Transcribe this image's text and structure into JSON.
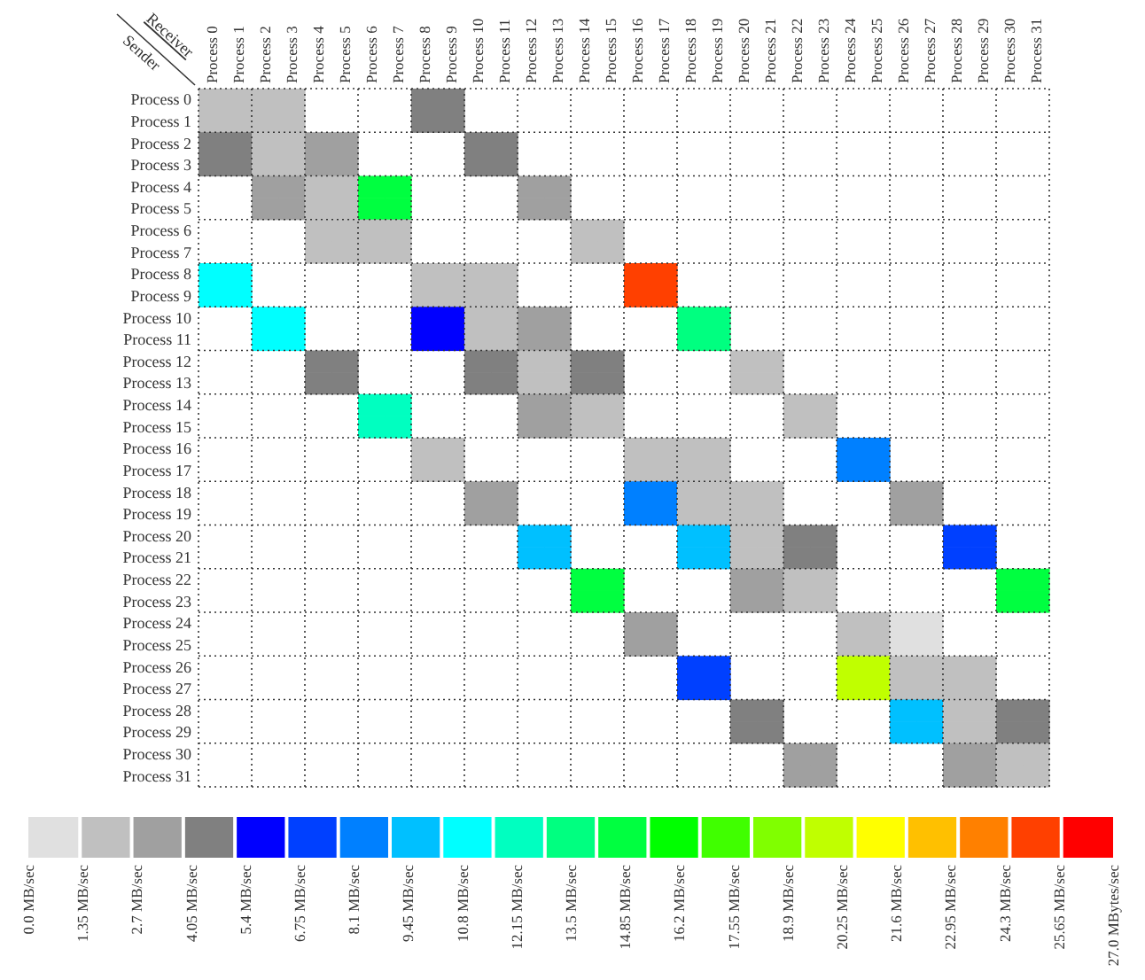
{
  "chart_data": {
    "type": "heatmap",
    "xlabel": "Receiver",
    "ylabel": "Sender",
    "categories": [
      "Process 0",
      "Process 1",
      "Process 2",
      "Process 3",
      "Process 4",
      "Process 5",
      "Process 6",
      "Process 7",
      "Process 8",
      "Process 9",
      "Process 10",
      "Process 11",
      "Process 12",
      "Process 13",
      "Process 14",
      "Process 15",
      "Process 16",
      "Process 17",
      "Process 18",
      "Process 19",
      "Process 20",
      "Process 21",
      "Process 22",
      "Process 23",
      "Process 24",
      "Process 25",
      "Process 26",
      "Process 27",
      "Process 28",
      "Process 29",
      "Process 30",
      "Process 31"
    ],
    "y_categories": [
      "Process 0",
      "Process 1",
      "Process 2",
      "Process 3",
      "Process 4",
      "Process 5",
      "Process 6",
      "Process 7",
      "Process 8",
      "Process 9",
      "Process 10",
      "Process 11",
      "Process 12",
      "Process 13",
      "Process 14",
      "Process 15",
      "Process 16",
      "Process 17",
      "Process 18",
      "Process 19",
      "Process 20",
      "Process 21",
      "Process 22",
      "Process 23",
      "Process 24",
      "Process 25",
      "Process 26",
      "Process 27",
      "Process 28",
      "Process 29",
      "Process 30",
      "Process 31"
    ],
    "cells": [
      [
        1.35,
        1.35,
        1.35,
        1.35,
        null,
        null,
        null,
        null,
        4.05,
        4.05,
        null,
        null,
        null,
        null,
        null,
        null,
        null,
        null,
        null,
        null,
        null,
        null,
        null,
        null,
        null,
        null,
        null,
        null,
        null,
        null,
        null,
        null
      ],
      [
        1.35,
        1.35,
        1.35,
        1.35,
        null,
        null,
        null,
        null,
        4.05,
        4.05,
        null,
        null,
        null,
        null,
        null,
        null,
        null,
        null,
        null,
        null,
        null,
        null,
        null,
        null,
        null,
        null,
        null,
        null,
        null,
        null,
        null,
        null
      ],
      [
        4.05,
        4.05,
        1.35,
        1.35,
        2.7,
        2.7,
        null,
        null,
        null,
        null,
        4.05,
        4.05,
        null,
        null,
        null,
        null,
        null,
        null,
        null,
        null,
        null,
        null,
        null,
        null,
        null,
        null,
        null,
        null,
        null,
        null,
        null,
        null
      ],
      [
        4.05,
        4.05,
        1.35,
        1.35,
        2.7,
        2.7,
        null,
        null,
        null,
        null,
        4.05,
        4.05,
        null,
        null,
        null,
        null,
        null,
        null,
        null,
        null,
        null,
        null,
        null,
        null,
        null,
        null,
        null,
        null,
        null,
        null,
        null,
        null
      ],
      [
        null,
        null,
        2.7,
        2.7,
        1.35,
        1.35,
        14.85,
        14.85,
        null,
        null,
        null,
        null,
        2.7,
        2.7,
        null,
        null,
        null,
        null,
        null,
        null,
        null,
        null,
        null,
        null,
        null,
        null,
        null,
        null,
        null,
        null,
        null,
        null
      ],
      [
        null,
        null,
        2.7,
        2.7,
        1.35,
        1.35,
        14.85,
        14.85,
        null,
        null,
        null,
        null,
        2.7,
        2.7,
        null,
        null,
        null,
        null,
        null,
        null,
        null,
        null,
        null,
        null,
        null,
        null,
        null,
        null,
        null,
        null,
        null,
        null
      ],
      [
        null,
        null,
        null,
        null,
        1.35,
        1.35,
        1.35,
        1.35,
        null,
        null,
        null,
        null,
        null,
        null,
        1.35,
        1.35,
        null,
        null,
        null,
        null,
        null,
        null,
        null,
        null,
        null,
        null,
        null,
        null,
        null,
        null,
        null,
        null
      ],
      [
        null,
        null,
        null,
        null,
        1.35,
        1.35,
        1.35,
        1.35,
        null,
        null,
        null,
        null,
        null,
        null,
        1.35,
        1.35,
        null,
        null,
        null,
        null,
        null,
        null,
        null,
        null,
        null,
        null,
        null,
        null,
        null,
        null,
        null,
        null
      ],
      [
        10.8,
        10.8,
        null,
        null,
        null,
        null,
        null,
        null,
        1.35,
        1.35,
        1.35,
        1.35,
        null,
        null,
        null,
        null,
        25.65,
        25.65,
        null,
        null,
        null,
        null,
        null,
        null,
        null,
        null,
        null,
        null,
        null,
        null,
        null,
        null
      ],
      [
        10.8,
        10.8,
        null,
        null,
        null,
        null,
        null,
        null,
        1.35,
        1.35,
        1.35,
        1.35,
        null,
        null,
        null,
        null,
        25.65,
        25.65,
        null,
        null,
        null,
        null,
        null,
        null,
        null,
        null,
        null,
        null,
        null,
        null,
        null,
        null
      ],
      [
        null,
        null,
        10.8,
        10.8,
        null,
        null,
        null,
        null,
        5.4,
        5.4,
        1.35,
        1.35,
        2.7,
        2.7,
        null,
        null,
        null,
        null,
        13.5,
        13.5,
        null,
        null,
        null,
        null,
        null,
        null,
        null,
        null,
        null,
        null,
        null,
        null
      ],
      [
        null,
        null,
        10.8,
        10.8,
        null,
        null,
        null,
        null,
        5.4,
        5.4,
        1.35,
        1.35,
        2.7,
        2.7,
        null,
        null,
        null,
        null,
        13.5,
        13.5,
        null,
        null,
        null,
        null,
        null,
        null,
        null,
        null,
        null,
        null,
        null,
        null
      ],
      [
        null,
        null,
        null,
        null,
        4.05,
        4.05,
        null,
        null,
        null,
        null,
        4.05,
        4.05,
        1.35,
        1.35,
        4.05,
        4.05,
        null,
        null,
        null,
        null,
        1.35,
        1.35,
        null,
        null,
        null,
        null,
        null,
        null,
        null,
        null,
        null,
        null
      ],
      [
        null,
        null,
        null,
        null,
        4.05,
        4.05,
        null,
        null,
        null,
        null,
        4.05,
        4.05,
        1.35,
        1.35,
        4.05,
        4.05,
        null,
        null,
        null,
        null,
        1.35,
        1.35,
        null,
        null,
        null,
        null,
        null,
        null,
        null,
        null,
        null,
        null
      ],
      [
        null,
        null,
        null,
        null,
        null,
        null,
        12.15,
        12.15,
        null,
        null,
        null,
        null,
        2.7,
        2.7,
        1.35,
        1.35,
        null,
        null,
        null,
        null,
        null,
        null,
        1.35,
        1.35,
        null,
        null,
        null,
        null,
        null,
        null,
        null,
        null
      ],
      [
        null,
        null,
        null,
        null,
        null,
        null,
        12.15,
        12.15,
        null,
        null,
        null,
        null,
        2.7,
        2.7,
        1.35,
        1.35,
        null,
        null,
        null,
        null,
        null,
        null,
        1.35,
        1.35,
        null,
        null,
        null,
        null,
        null,
        null,
        null,
        null
      ],
      [
        null,
        null,
        null,
        null,
        null,
        null,
        null,
        null,
        1.35,
        1.35,
        null,
        null,
        null,
        null,
        null,
        null,
        1.35,
        1.35,
        1.35,
        1.35,
        null,
        null,
        null,
        null,
        8.1,
        8.1,
        null,
        null,
        null,
        null,
        null,
        null
      ],
      [
        null,
        null,
        null,
        null,
        null,
        null,
        null,
        null,
        1.35,
        1.35,
        null,
        null,
        null,
        null,
        null,
        null,
        1.35,
        1.35,
        1.35,
        1.35,
        null,
        null,
        null,
        null,
        8.1,
        8.1,
        null,
        null,
        null,
        null,
        null,
        null
      ],
      [
        null,
        null,
        null,
        null,
        null,
        null,
        null,
        null,
        null,
        null,
        2.7,
        2.7,
        null,
        null,
        null,
        null,
        8.1,
        8.1,
        1.35,
        1.35,
        1.35,
        1.35,
        null,
        null,
        null,
        null,
        2.7,
        2.7,
        null,
        null,
        null,
        null
      ],
      [
        null,
        null,
        null,
        null,
        null,
        null,
        null,
        null,
        null,
        null,
        2.7,
        2.7,
        null,
        null,
        null,
        null,
        8.1,
        8.1,
        1.35,
        1.35,
        1.35,
        1.35,
        null,
        null,
        null,
        null,
        2.7,
        2.7,
        null,
        null,
        null,
        null
      ],
      [
        null,
        null,
        null,
        null,
        null,
        null,
        null,
        null,
        null,
        null,
        null,
        null,
        9.45,
        9.45,
        null,
        null,
        null,
        null,
        9.45,
        9.45,
        1.35,
        1.35,
        4.05,
        4.05,
        null,
        null,
        null,
        null,
        6.75,
        6.75,
        null,
        null
      ],
      [
        null,
        null,
        null,
        null,
        null,
        null,
        null,
        null,
        null,
        null,
        null,
        null,
        9.45,
        9.45,
        null,
        null,
        null,
        null,
        9.45,
        9.45,
        1.35,
        1.35,
        4.05,
        4.05,
        null,
        null,
        null,
        null,
        6.75,
        6.75,
        null,
        null
      ],
      [
        null,
        null,
        null,
        null,
        null,
        null,
        null,
        null,
        null,
        null,
        null,
        null,
        null,
        null,
        14.85,
        14.85,
        null,
        null,
        null,
        null,
        2.7,
        2.7,
        1.35,
        1.35,
        null,
        null,
        null,
        null,
        null,
        null,
        14.85,
        14.85
      ],
      [
        null,
        null,
        null,
        null,
        null,
        null,
        null,
        null,
        null,
        null,
        null,
        null,
        null,
        null,
        14.85,
        14.85,
        null,
        null,
        null,
        null,
        2.7,
        2.7,
        1.35,
        1.35,
        null,
        null,
        null,
        null,
        null,
        null,
        14.85,
        14.85
      ],
      [
        null,
        null,
        null,
        null,
        null,
        null,
        null,
        null,
        null,
        null,
        null,
        null,
        null,
        null,
        null,
        null,
        2.7,
        2.7,
        null,
        null,
        null,
        null,
        null,
        null,
        1.35,
        1.35,
        0,
        0,
        null,
        null,
        null,
        null
      ],
      [
        null,
        null,
        null,
        null,
        null,
        null,
        null,
        null,
        null,
        null,
        null,
        null,
        null,
        null,
        null,
        null,
        2.7,
        2.7,
        null,
        null,
        null,
        null,
        null,
        null,
        1.35,
        1.35,
        0,
        0,
        null,
        null,
        null,
        null
      ],
      [
        null,
        null,
        null,
        null,
        null,
        null,
        null,
        null,
        null,
        null,
        null,
        null,
        null,
        null,
        null,
        null,
        null,
        null,
        6.75,
        6.75,
        null,
        null,
        null,
        null,
        20.25,
        20.25,
        1.35,
        1.35,
        1.35,
        1.35,
        null,
        null
      ],
      [
        null,
        null,
        null,
        null,
        null,
        null,
        null,
        null,
        null,
        null,
        null,
        null,
        null,
        null,
        null,
        null,
        null,
        null,
        6.75,
        6.75,
        null,
        null,
        null,
        null,
        20.25,
        20.25,
        1.35,
        1.35,
        1.35,
        1.35,
        null,
        null
      ],
      [
        null,
        null,
        null,
        null,
        null,
        null,
        null,
        null,
        null,
        null,
        null,
        null,
        null,
        null,
        null,
        null,
        null,
        null,
        null,
        null,
        4.05,
        4.05,
        null,
        null,
        null,
        null,
        9.45,
        9.45,
        1.35,
        1.35,
        4.05,
        4.05
      ],
      [
        null,
        null,
        null,
        null,
        null,
        null,
        null,
        null,
        null,
        null,
        null,
        null,
        null,
        null,
        null,
        null,
        null,
        null,
        null,
        null,
        4.05,
        4.05,
        null,
        null,
        null,
        null,
        9.45,
        9.45,
        1.35,
        1.35,
        4.05,
        4.05
      ],
      [
        null,
        null,
        null,
        null,
        null,
        null,
        null,
        null,
        null,
        null,
        null,
        null,
        null,
        null,
        null,
        null,
        null,
        null,
        null,
        null,
        null,
        null,
        2.7,
        2.7,
        null,
        null,
        null,
        null,
        2.7,
        2.7,
        1.35,
        1.35
      ],
      [
        null,
        null,
        null,
        null,
        null,
        null,
        null,
        null,
        null,
        null,
        null,
        null,
        null,
        null,
        null,
        null,
        null,
        null,
        null,
        null,
        null,
        null,
        2.7,
        2.7,
        null,
        null,
        null,
        null,
        2.7,
        2.7,
        1.35,
        1.35
      ]
    ],
    "clim": [
      0,
      27
    ],
    "cticks": [
      {
        "value": 0,
        "label": "0.0 MB/sec"
      },
      {
        "value": 1.35,
        "label": "1.35 MB/sec"
      },
      {
        "value": 2.7,
        "label": "2.7 MB/sec"
      },
      {
        "value": 4.05,
        "label": "4.05 MB/sec"
      },
      {
        "value": 5.4,
        "label": "5.4 MB/sec"
      },
      {
        "value": 6.75,
        "label": "6.75 MB/sec"
      },
      {
        "value": 8.1,
        "label": "8.1 MB/sec"
      },
      {
        "value": 9.45,
        "label": "9.45 MB/sec"
      },
      {
        "value": 10.8,
        "label": "10.8 MB/sec"
      },
      {
        "value": 12.15,
        "label": "12.15 MB/sec"
      },
      {
        "value": 13.5,
        "label": "13.5 MB/sec"
      },
      {
        "value": 14.85,
        "label": "14.85 MB/sec"
      },
      {
        "value": 16.2,
        "label": "16.2 MB/sec"
      },
      {
        "value": 17.55,
        "label": "17.55 MB/sec"
      },
      {
        "value": 18.9,
        "label": "18.9 MB/sec"
      },
      {
        "value": 20.25,
        "label": "20.25 MB/sec"
      },
      {
        "value": 21.6,
        "label": "21.6 MB/sec"
      },
      {
        "value": 22.95,
        "label": "22.95 MB/sec"
      },
      {
        "value": 24.3,
        "label": "24.3 MB/sec"
      },
      {
        "value": 25.65,
        "label": "25.65 MB/sec"
      },
      {
        "value": 27,
        "label": "27.0 MBytes/sec"
      }
    ],
    "colors": [
      "#e0e0e0",
      "#c0c0c0",
      "#a0a0a0",
      "#808080",
      "#0000ff",
      "#0040ff",
      "#0080ff",
      "#00c0ff",
      "#00ffff",
      "#00ffc0",
      "#00ff80",
      "#00ff40",
      "#00ff00",
      "#40ff00",
      "#80ff00",
      "#c0ff00",
      "#ffff00",
      "#ffc000",
      "#ff8000",
      "#ff4000",
      "#ff0000"
    ],
    "grid": true
  }
}
